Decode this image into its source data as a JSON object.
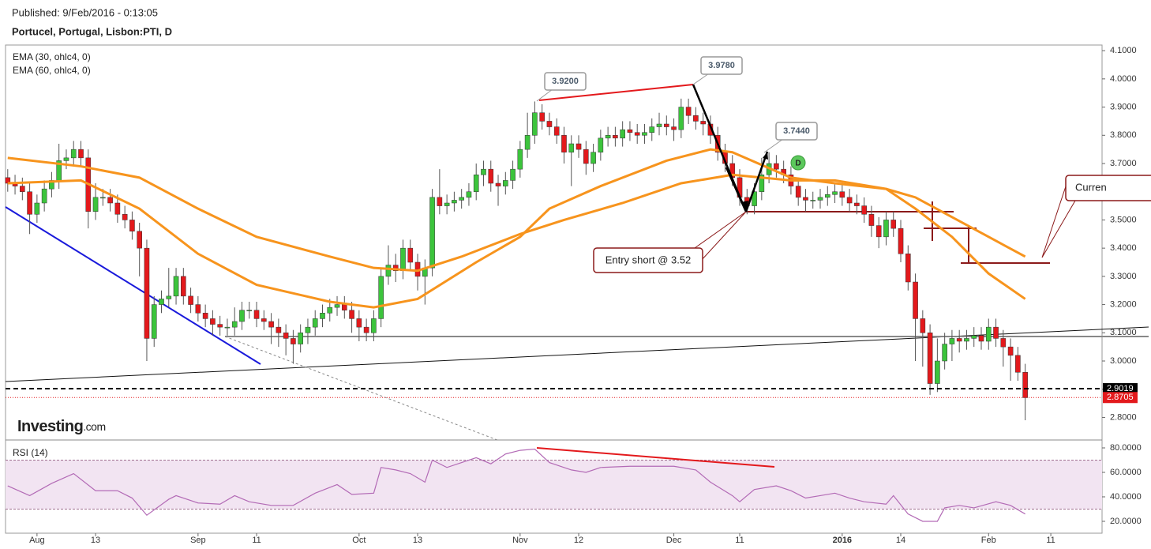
{
  "header": {
    "published": "Published: 9/Feb/2016 - 0:13:05",
    "symbol": "Portucel, Portugal, Lisbon:PTI, D"
  },
  "brand": {
    "name": "Investing",
    "suffix": ".com"
  },
  "annotations": {
    "labels": [
      "3.9200",
      "3.9780",
      "3.7440"
    ],
    "entry": "Entry short @ 3.52",
    "current": "Curren",
    "marker": "D"
  },
  "chart_data": [
    {
      "type": "candlestick",
      "up_color": "#3cc43c",
      "down_color": "#e3191c",
      "open": [
        3.65,
        3.63,
        3.62,
        3.6,
        3.52,
        3.56,
        3.61,
        3.64,
        3.71,
        3.72,
        3.75,
        3.72,
        3.53,
        3.58,
        3.58,
        3.56,
        3.52,
        3.5,
        3.46,
        3.4,
        3.08,
        3.2,
        3.22,
        3.23,
        3.3,
        3.23,
        3.2,
        3.17,
        3.15,
        3.13,
        3.12,
        3.12,
        3.14,
        3.18,
        3.18,
        3.15,
        3.14,
        3.12,
        3.1,
        3.08,
        3.06,
        3.1,
        3.12,
        3.15,
        3.17,
        3.19,
        3.2,
        3.18,
        3.15,
        3.12,
        3.1,
        3.15,
        3.3,
        3.34,
        3.32,
        3.4,
        3.35,
        3.3,
        3.33,
        3.58,
        3.55,
        3.56,
        3.57,
        3.58,
        3.6,
        3.66,
        3.68,
        3.63,
        3.62,
        3.64,
        3.68,
        3.75,
        3.8,
        3.88,
        3.85,
        3.83,
        3.8,
        3.74,
        3.77,
        3.75,
        3.7,
        3.74,
        3.79,
        3.8,
        3.79,
        3.82,
        3.81,
        3.8,
        3.81,
        3.83,
        3.84,
        3.83,
        3.82,
        3.9,
        3.87,
        3.85,
        3.84,
        3.8,
        3.74,
        3.7,
        3.65,
        3.58,
        3.55,
        3.6,
        3.66,
        3.7,
        3.68,
        3.66,
        3.62,
        3.58,
        3.57,
        3.57,
        3.58,
        3.59,
        3.6,
        3.58,
        3.56,
        3.55,
        3.52,
        3.48,
        3.44,
        3.5,
        3.47,
        3.38,
        3.28,
        3.15,
        3.1,
        2.92,
        3.0,
        3.06,
        3.08,
        3.07,
        3.08,
        3.09,
        3.07,
        3.12,
        3.08,
        3.05,
        3.02,
        2.96
      ],
      "high": [
        3.68,
        3.66,
        3.65,
        3.63,
        3.59,
        3.64,
        3.67,
        3.77,
        3.75,
        3.78,
        3.78,
        3.75,
        3.63,
        3.61,
        3.61,
        3.59,
        3.55,
        3.53,
        3.49,
        3.43,
        3.23,
        3.25,
        3.33,
        3.33,
        3.33,
        3.26,
        3.23,
        3.2,
        3.18,
        3.16,
        3.15,
        3.19,
        3.21,
        3.21,
        3.21,
        3.18,
        3.17,
        3.15,
        3.13,
        3.11,
        3.13,
        3.15,
        3.18,
        3.2,
        3.22,
        3.23,
        3.23,
        3.21,
        3.18,
        3.15,
        3.18,
        3.33,
        3.41,
        3.38,
        3.43,
        3.43,
        3.38,
        3.36,
        3.61,
        3.68,
        3.59,
        3.6,
        3.61,
        3.63,
        3.7,
        3.71,
        3.71,
        3.66,
        3.67,
        3.71,
        3.78,
        3.88,
        3.92,
        3.91,
        3.88,
        3.86,
        3.83,
        3.8,
        3.8,
        3.78,
        3.77,
        3.82,
        3.83,
        3.83,
        3.85,
        3.85,
        3.84,
        3.84,
        3.86,
        3.88,
        3.87,
        3.86,
        3.93,
        3.93,
        3.9,
        3.88,
        3.87,
        3.83,
        3.77,
        3.73,
        3.68,
        3.61,
        3.63,
        3.72,
        3.74,
        3.73,
        3.71,
        3.69,
        3.65,
        3.61,
        3.6,
        3.61,
        3.62,
        3.63,
        3.63,
        3.61,
        3.59,
        3.58,
        3.55,
        3.51,
        3.53,
        3.53,
        3.5,
        3.41,
        3.31,
        3.18,
        3.13,
        3.08,
        3.1,
        3.11,
        3.11,
        3.11,
        3.12,
        3.12,
        3.15,
        3.15,
        3.11,
        3.08,
        3.05,
        2.99
      ],
      "low": [
        3.6,
        3.59,
        3.57,
        3.45,
        3.49,
        3.53,
        3.58,
        3.61,
        3.68,
        3.69,
        3.69,
        3.47,
        3.5,
        3.55,
        3.53,
        3.49,
        3.47,
        3.43,
        3.3,
        3.0,
        3.05,
        3.17,
        3.19,
        3.2,
        3.2,
        3.17,
        3.14,
        3.12,
        3.09,
        3.09,
        3.09,
        3.09,
        3.11,
        3.15,
        3.12,
        3.11,
        3.06,
        3.05,
        3.02,
        2.99,
        3.03,
        3.06,
        3.09,
        3.12,
        3.14,
        3.16,
        3.15,
        3.1,
        3.07,
        3.07,
        3.07,
        3.12,
        3.27,
        3.28,
        3.29,
        3.32,
        3.25,
        3.2,
        3.3,
        3.52,
        3.52,
        3.53,
        3.54,
        3.55,
        3.57,
        3.62,
        3.6,
        3.55,
        3.59,
        3.61,
        3.65,
        3.72,
        3.77,
        3.82,
        3.8,
        3.77,
        3.7,
        3.62,
        3.72,
        3.66,
        3.67,
        3.71,
        3.76,
        3.76,
        3.76,
        3.78,
        3.77,
        3.77,
        3.78,
        3.8,
        3.8,
        3.78,
        3.79,
        3.84,
        3.82,
        3.8,
        3.77,
        3.71,
        3.67,
        3.62,
        3.55,
        3.52,
        3.52,
        3.57,
        3.63,
        3.65,
        3.63,
        3.59,
        3.55,
        3.53,
        3.54,
        3.54,
        3.55,
        3.56,
        3.55,
        3.53,
        3.52,
        3.49,
        3.44,
        3.4,
        3.41,
        3.44,
        3.35,
        3.25,
        3.0,
        2.98,
        2.88,
        2.89,
        2.97,
        3.0,
        3.03,
        3.04,
        3.05,
        3.04,
        3.04,
        3.05,
        2.98,
        2.93,
        2.93,
        2.79
      ],
      "close": [
        3.63,
        3.62,
        3.6,
        3.52,
        3.56,
        3.61,
        3.64,
        3.71,
        3.72,
        3.75,
        3.72,
        3.53,
        3.58,
        3.58,
        3.56,
        3.52,
        3.5,
        3.46,
        3.4,
        3.08,
        3.2,
        3.22,
        3.23,
        3.3,
        3.23,
        3.2,
        3.17,
        3.15,
        3.13,
        3.12,
        3.12,
        3.14,
        3.18,
        3.18,
        3.15,
        3.14,
        3.12,
        3.1,
        3.08,
        3.06,
        3.1,
        3.12,
        3.15,
        3.17,
        3.19,
        3.2,
        3.18,
        3.15,
        3.12,
        3.1,
        3.15,
        3.3,
        3.34,
        3.32,
        3.4,
        3.35,
        3.3,
        3.33,
        3.58,
        3.55,
        3.56,
        3.57,
        3.58,
        3.6,
        3.66,
        3.68,
        3.63,
        3.62,
        3.64,
        3.68,
        3.75,
        3.8,
        3.88,
        3.85,
        3.83,
        3.8,
        3.74,
        3.77,
        3.75,
        3.7,
        3.74,
        3.79,
        3.8,
        3.79,
        3.82,
        3.81,
        3.8,
        3.81,
        3.83,
        3.84,
        3.83,
        3.82,
        3.9,
        3.87,
        3.85,
        3.84,
        3.8,
        3.74,
        3.7,
        3.65,
        3.58,
        3.55,
        3.6,
        3.66,
        3.7,
        3.68,
        3.66,
        3.62,
        3.58,
        3.57,
        3.57,
        3.58,
        3.59,
        3.6,
        3.58,
        3.56,
        3.55,
        3.52,
        3.48,
        3.44,
        3.5,
        3.47,
        3.38,
        3.28,
        3.15,
        3.1,
        2.92,
        3.0,
        3.06,
        3.08,
        3.07,
        3.08,
        3.09,
        3.07,
        3.12,
        3.08,
        3.05,
        3.02,
        2.96,
        2.87
      ],
      "series": [
        {
          "name": "EMA (30, ohlc4, 0)",
          "color": "#f7941d",
          "x": [
            0,
            10,
            18,
            26,
            34,
            44,
            50,
            56,
            64,
            70,
            74,
            81,
            90,
            96,
            99,
            107,
            113,
            120,
            124,
            129,
            134,
            139
          ],
          "values": [
            3.63,
            3.64,
            3.54,
            3.38,
            3.27,
            3.21,
            3.19,
            3.22,
            3.35,
            3.44,
            3.54,
            3.62,
            3.71,
            3.75,
            3.74,
            3.65,
            3.63,
            3.61,
            3.54,
            3.44,
            3.31,
            3.22
          ]
        },
        {
          "name": "EMA (60, ohlc4, 0)",
          "color": "#f7941d",
          "x": [
            0,
            10,
            18,
            26,
            34,
            44,
            50,
            56,
            62,
            70,
            76,
            84,
            92,
            99,
            107,
            113,
            120,
            124,
            129,
            134,
            139
          ],
          "values": [
            3.72,
            3.69,
            3.65,
            3.54,
            3.44,
            3.37,
            3.33,
            3.32,
            3.37,
            3.45,
            3.5,
            3.56,
            3.63,
            3.66,
            3.64,
            3.64,
            3.61,
            3.58,
            3.51,
            3.44,
            3.37
          ]
        }
      ],
      "price_lines": [
        {
          "value": 2.9019,
          "label": "2.9019",
          "color": "#000000"
        },
        {
          "value": 2.8705,
          "label": "2.8705",
          "color": "#e3191c"
        }
      ],
      "ylim": [
        2.72,
        4.12
      ],
      "yticks": [
        {
          "value": 2.8,
          "label": "2.8000"
        },
        {
          "value": 2.9,
          "label": "2.9000"
        },
        {
          "value": 3.0,
          "label": "3.0000"
        },
        {
          "value": 3.1,
          "label": "3.1000"
        },
        {
          "value": 3.2,
          "label": "3.2000"
        },
        {
          "value": 3.3,
          "label": "3.3000"
        },
        {
          "value": 3.4,
          "label": "3.4000"
        },
        {
          "value": 3.5,
          "label": "3.5000"
        },
        {
          "value": 3.6,
          "label": "3.6000"
        },
        {
          "value": 3.7,
          "label": "3.7000"
        },
        {
          "value": 3.8,
          "label": "3.8000"
        },
        {
          "value": 3.9,
          "label": "3.9000"
        },
        {
          "value": 4.0,
          "label": "4.0000"
        },
        {
          "value": 4.1,
          "label": "4.1000"
        }
      ],
      "xlim": [
        -0.3,
        149.5
      ],
      "xticks": [
        {
          "value": 4,
          "label": "Aug"
        },
        {
          "value": 12,
          "label": "13"
        },
        {
          "value": 26,
          "label": "Sep"
        },
        {
          "value": 34,
          "label": "11"
        },
        {
          "value": 48,
          "label": "Oct"
        },
        {
          "value": 56,
          "label": "13"
        },
        {
          "value": 70,
          "label": "Nov"
        },
        {
          "value": 78,
          "label": "12"
        },
        {
          "value": 91,
          "label": "Dec"
        },
        {
          "value": 100,
          "label": "11"
        },
        {
          "value": 114,
          "label": "2016"
        },
        {
          "value": 122,
          "label": "14"
        },
        {
          "value": 134,
          "label": "Feb"
        },
        {
          "value": 142.5,
          "label": "11"
        }
      ]
    },
    {
      "type": "line",
      "title": "RSI (14)",
      "color": "#b36bb6",
      "band": [
        30,
        70
      ],
      "band_color": "#f2e4f2",
      "x": [
        0,
        3,
        6,
        9,
        12,
        15,
        17,
        19,
        22,
        23,
        26,
        29,
        31,
        33,
        36,
        39,
        42,
        45,
        47,
        50,
        51,
        53,
        55,
        57,
        58,
        60,
        64,
        66,
        68,
        70,
        72,
        74,
        77,
        79,
        81,
        85,
        88,
        91,
        94,
        96,
        99,
        100,
        102,
        105,
        107,
        109,
        111,
        113,
        115,
        117,
        120,
        121,
        123,
        125,
        127,
        128,
        130,
        132,
        135,
        137,
        139
      ],
      "values": [
        49,
        41,
        51,
        59,
        45,
        45,
        39,
        25,
        38,
        41,
        35,
        34,
        41,
        36,
        33,
        33,
        43,
        50,
        42,
        43,
        64,
        62,
        59,
        52,
        70,
        64,
        72,
        67,
        75,
        78,
        79,
        68,
        62,
        60,
        64,
        65,
        65,
        65,
        62,
        52,
        41,
        36,
        46,
        49,
        45,
        39,
        41,
        43,
        39,
        36,
        34,
        41,
        26,
        20,
        20,
        31,
        33,
        31,
        36,
        33,
        26
      ],
      "ylim": [
        10.3,
        86.45
      ],
      "yticks": [
        {
          "value": 20,
          "label": "20.0000"
        },
        {
          "value": 40,
          "label": "40.0000"
        },
        {
          "value": 60,
          "label": "60.0000"
        },
        {
          "value": 80,
          "label": "80.0000"
        }
      ]
    }
  ]
}
